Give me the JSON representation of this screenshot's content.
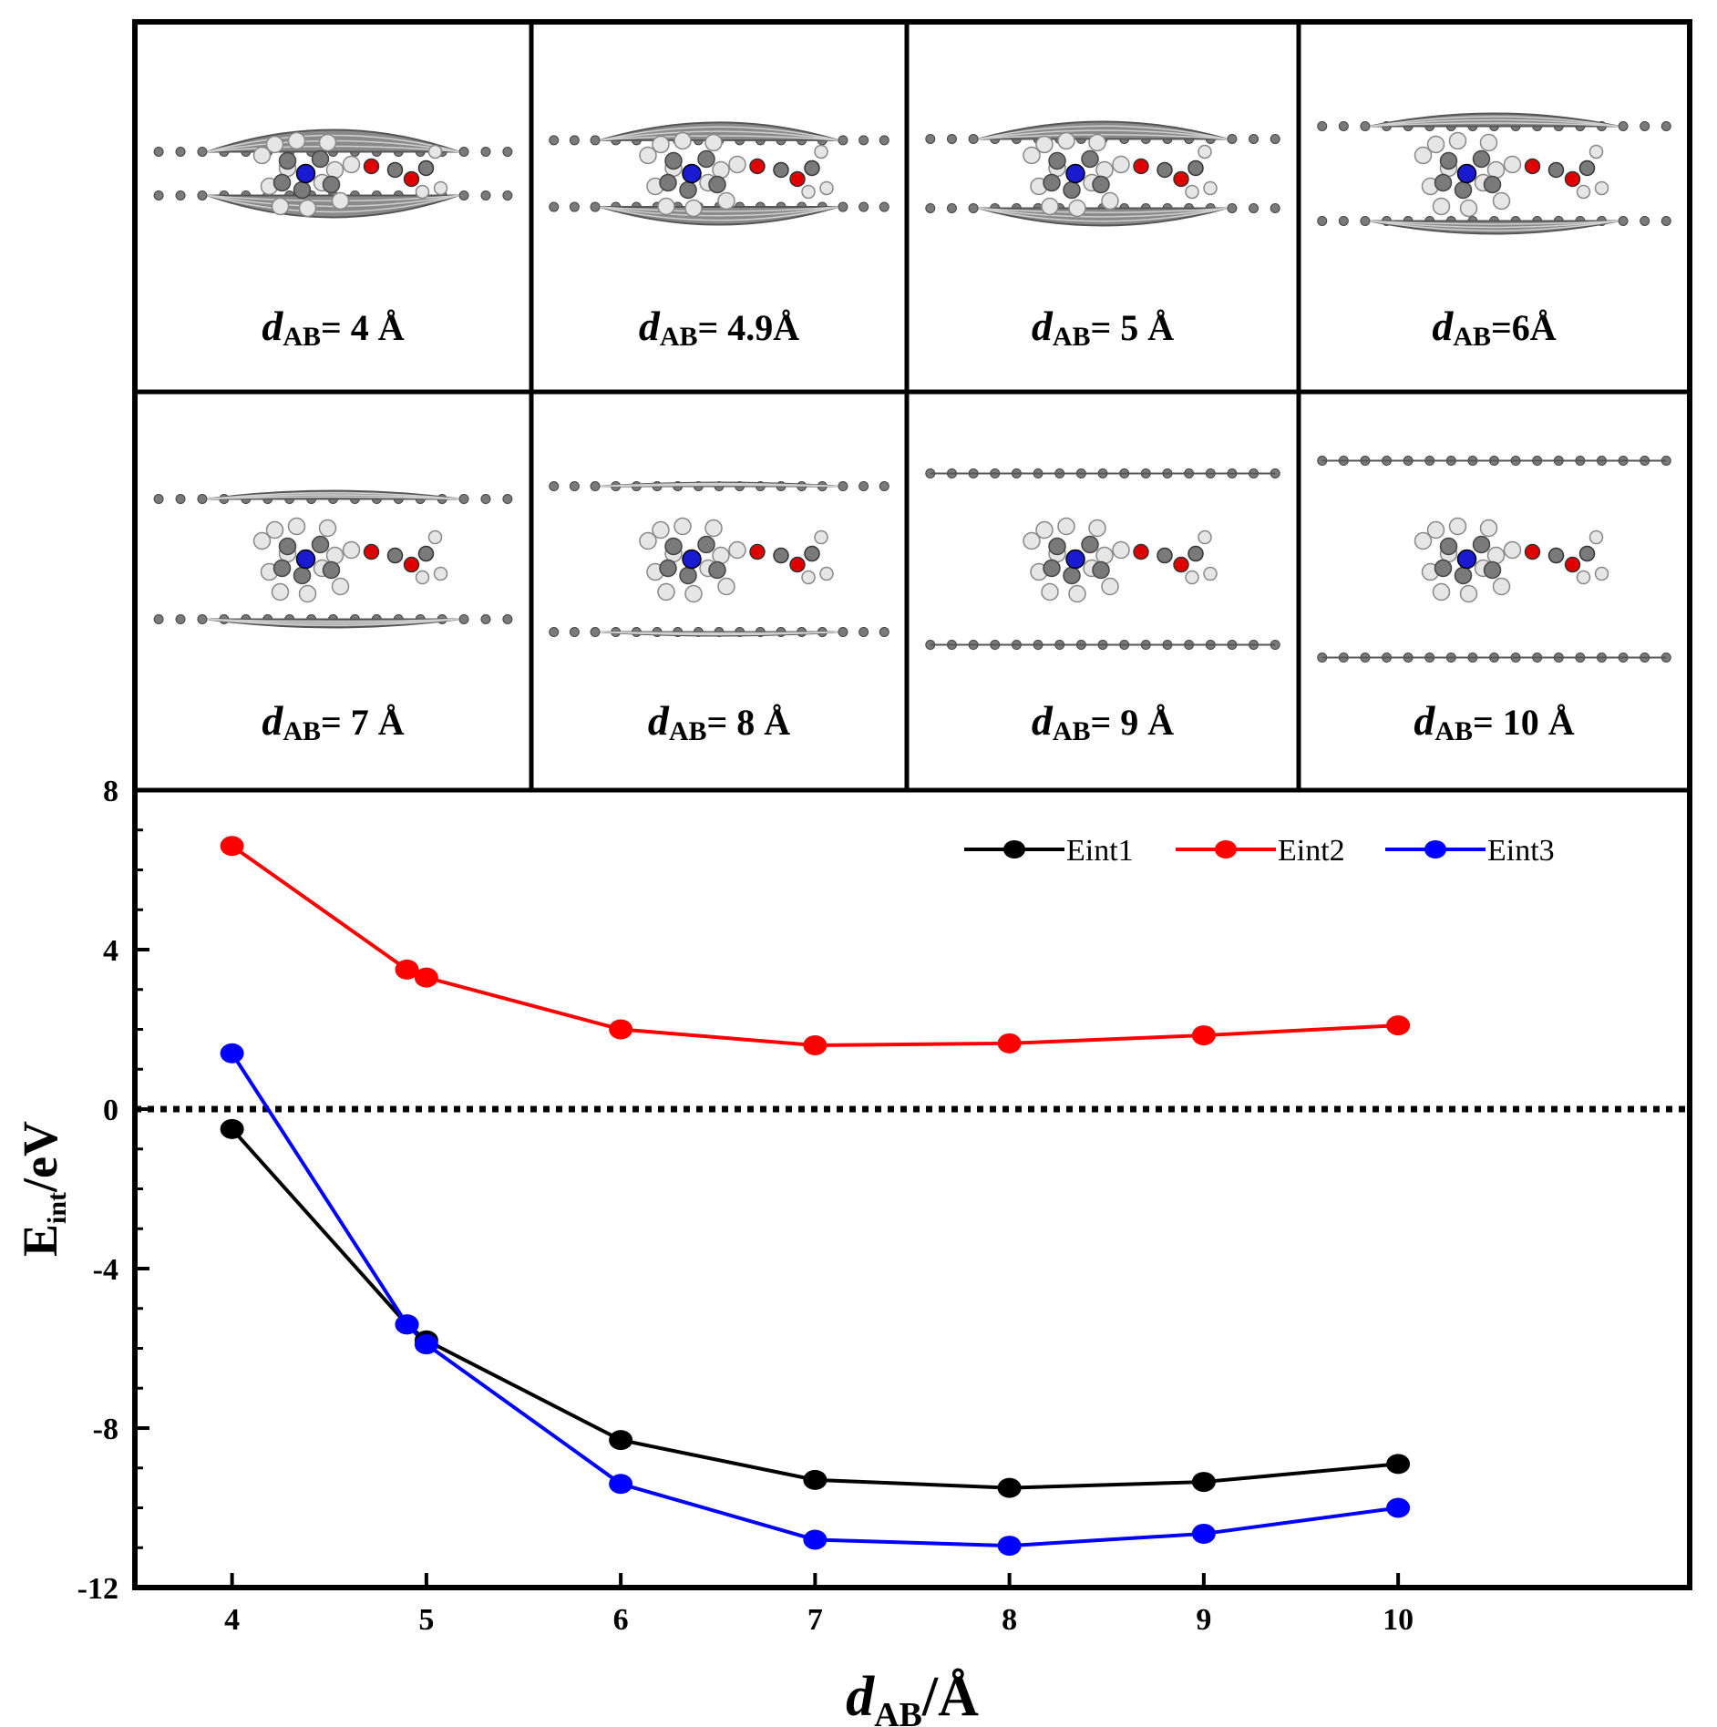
{
  "panels": [
    {
      "var": "d",
      "sub": "AB",
      "text": "= 4 Å",
      "spacing": 4
    },
    {
      "var": "d",
      "sub": "AB",
      "text": "= 4.9Å",
      "spacing": 4.9
    },
    {
      "var": "d",
      "sub": "AB",
      "text": "= 5 Å",
      "spacing": 5
    },
    {
      "var": "d",
      "sub": "AB",
      "text": "=6Å",
      "spacing": 6
    },
    {
      "var": "d",
      "sub": "AB",
      "text": "= 7 Å",
      "spacing": 7
    },
    {
      "var": "d",
      "sub": "AB",
      "text": "= 8 Å",
      "spacing": 8
    },
    {
      "var": "d",
      "sub": "AB",
      "text": "= 9 Å",
      "spacing": 9
    },
    {
      "var": "d",
      "sub": "AB",
      "text": "= 10 Å",
      "spacing": 10
    }
  ],
  "colors": {
    "Eint1": "#000000",
    "Eint2": "#ff0000",
    "Eint3": "#0000ff",
    "carbon": "#7a7a7a",
    "hydrogen": "#e6e6e6",
    "oxygen": "#e00000",
    "nitrogen": "#1a1ad0"
  },
  "chart_data": {
    "type": "line",
    "xlabel": {
      "var": "d",
      "sub": "AB",
      "unit": "/Å"
    },
    "ylabel": {
      "main": "E",
      "sub": "int",
      "unit": "/eV"
    },
    "xlim": [
      3.5,
      11.5
    ],
    "ylim": [
      -12,
      8
    ],
    "xticks": [
      4,
      5,
      6,
      7,
      8,
      9,
      10
    ],
    "yticks": [
      -12,
      -8,
      -4,
      0,
      4,
      8
    ],
    "reference_line": {
      "y": 0,
      "style": "dotted"
    },
    "x": [
      4,
      4.9,
      5,
      6,
      7,
      8,
      9,
      10
    ],
    "series": [
      {
        "name": "Eint1",
        "values": [
          -0.5,
          -5.4,
          -5.8,
          -8.3,
          -9.3,
          -9.5,
          -9.35,
          -8.9
        ]
      },
      {
        "name": "Eint2",
        "values": [
          6.6,
          3.5,
          3.3,
          2.0,
          1.6,
          1.65,
          1.85,
          2.1
        ]
      },
      {
        "name": "Eint3",
        "values": [
          1.4,
          -5.4,
          -5.9,
          -9.4,
          -10.8,
          -10.95,
          -10.65,
          -10.0
        ]
      }
    ],
    "legend": {
      "position": "top-right",
      "entries": [
        "Eint1",
        "Eint2",
        "Eint3"
      ]
    }
  }
}
